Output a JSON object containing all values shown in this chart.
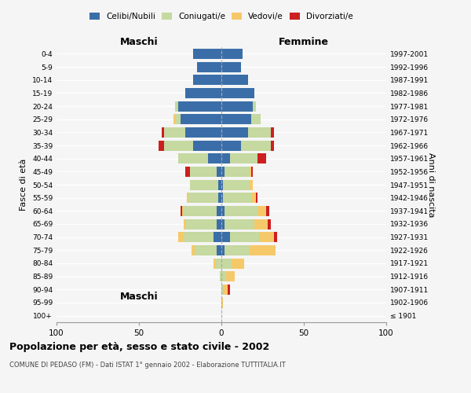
{
  "age_groups": [
    "100+",
    "95-99",
    "90-94",
    "85-89",
    "80-84",
    "75-79",
    "70-74",
    "65-69",
    "60-64",
    "55-59",
    "50-54",
    "45-49",
    "40-44",
    "35-39",
    "30-34",
    "25-29",
    "20-24",
    "15-19",
    "10-14",
    "5-9",
    "0-4"
  ],
  "birth_years": [
    "≤ 1901",
    "1902-1906",
    "1907-1911",
    "1912-1916",
    "1917-1921",
    "1922-1926",
    "1927-1931",
    "1932-1936",
    "1937-1941",
    "1942-1946",
    "1947-1951",
    "1952-1956",
    "1957-1961",
    "1962-1966",
    "1967-1971",
    "1972-1976",
    "1977-1981",
    "1982-1986",
    "1987-1991",
    "1992-1996",
    "1997-2001"
  ],
  "maschi": {
    "celibi": [
      0,
      0,
      0,
      0,
      0,
      3,
      5,
      3,
      3,
      2,
      2,
      3,
      8,
      17,
      22,
      25,
      26,
      22,
      17,
      15,
      17
    ],
    "coniugati": [
      0,
      0,
      0,
      1,
      4,
      13,
      18,
      19,
      20,
      18,
      17,
      16,
      18,
      18,
      13,
      3,
      2,
      0,
      0,
      0,
      0
    ],
    "vedovi": [
      0,
      0,
      0,
      0,
      1,
      2,
      3,
      1,
      1,
      1,
      0,
      0,
      0,
      0,
      0,
      1,
      0,
      0,
      0,
      0,
      0
    ],
    "divorziati": [
      0,
      0,
      0,
      0,
      0,
      0,
      0,
      0,
      1,
      0,
      0,
      3,
      0,
      3,
      1,
      0,
      0,
      0,
      0,
      0,
      0
    ]
  },
  "femmine": {
    "nubili": [
      0,
      0,
      0,
      0,
      0,
      2,
      5,
      2,
      2,
      1,
      1,
      2,
      5,
      12,
      16,
      18,
      19,
      20,
      16,
      12,
      13
    ],
    "coniugate": [
      0,
      0,
      1,
      3,
      6,
      15,
      18,
      18,
      20,
      17,
      16,
      15,
      17,
      18,
      14,
      6,
      2,
      0,
      0,
      0,
      0
    ],
    "vedove": [
      0,
      1,
      3,
      5,
      8,
      16,
      9,
      8,
      5,
      3,
      2,
      1,
      0,
      0,
      0,
      0,
      0,
      0,
      0,
      0,
      0
    ],
    "divorziate": [
      0,
      0,
      1,
      0,
      0,
      0,
      2,
      2,
      2,
      1,
      0,
      1,
      5,
      2,
      2,
      0,
      0,
      0,
      0,
      0,
      0
    ]
  },
  "colors": {
    "celibi": "#3b6ea8",
    "coniugati": "#c5d9a0",
    "vedovi": "#f5c96a",
    "divorziati": "#cc2020"
  },
  "xlim": 100,
  "title": "Popolazione per età, sesso e stato civile - 2002",
  "subtitle": "COMUNE DI PEDASO (FM) - Dati ISTAT 1° gennaio 2002 - Elaborazione TUTTITALIA.IT",
  "ylabel_left": "Fasce di età",
  "ylabel_right": "Anni di nascita",
  "xlabel_maschi": "Maschi",
  "xlabel_femmine": "Femmine",
  "bg_color": "#f5f5f5",
  "grid_color": "#ffffff",
  "dashed_line_color": "#aaaaaa"
}
